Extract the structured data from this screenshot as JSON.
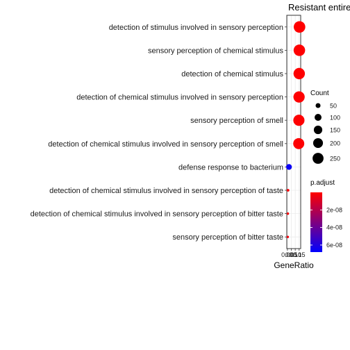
{
  "chart_data": {
    "type": "scatter",
    "title": "Resistant entire",
    "xlabel": "GeneRatio",
    "ylabel": "",
    "x_tick_labels": [
      "0.00",
      "0.05",
      "0.10",
      "0.15"
    ],
    "terms": [
      "detection of stimulus involved in sensory perception",
      "sensory perception of chemical stimulus",
      "detection of chemical stimulus",
      "detection of chemical stimulus involved in sensory perception",
      "sensory perception of smell",
      "detection of chemical stimulus involved in sensory perception of smell",
      "defense response to bacterium",
      "detection of chemical stimulus involved in sensory perception of taste",
      "detection of chemical stimulus involved in sensory perception of bitter taste",
      "sensory perception of bitter taste"
    ],
    "gene_ratio": [
      0.155,
      0.153,
      0.151,
      0.149,
      0.147,
      0.145,
      0.02,
      0.008,
      0.006,
      0.005
    ],
    "count": [
      280,
      275,
      270,
      265,
      260,
      255,
      70,
      15,
      12,
      11
    ],
    "p_adjust": [
      1e-10,
      2e-10,
      3e-10,
      4e-10,
      5e-10,
      6e-10,
      6.5e-08,
      2e-09,
      3e-09,
      3e-09
    ],
    "size_legend": {
      "title": "Count",
      "values": [
        50,
        100,
        150,
        200,
        250
      ],
      "labels": [
        "50",
        "100",
        "150",
        "200",
        "250"
      ]
    },
    "color_legend": {
      "title": "p.adjust",
      "tick_values": [
        2e-08,
        4e-08,
        6e-08
      ],
      "tick_labels": [
        "2e-08",
        "4e-08",
        "6e-08"
      ],
      "min": 0,
      "max": 6.8e-08,
      "low_color": "#ff0000",
      "high_color": "#0000ff"
    },
    "xlim": [
      -0.008,
      0.17
    ],
    "grid": true
  }
}
